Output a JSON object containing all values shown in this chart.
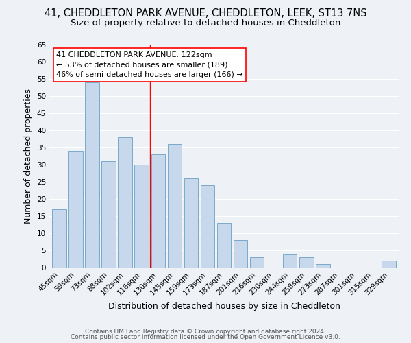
{
  "title": "41, CHEDDLETON PARK AVENUE, CHEDDLETON, LEEK, ST13 7NS",
  "subtitle": "Size of property relative to detached houses in Cheddleton",
  "xlabel": "Distribution of detached houses by size in Cheddleton",
  "ylabel": "Number of detached properties",
  "bar_labels": [
    "45sqm",
    "59sqm",
    "73sqm",
    "88sqm",
    "102sqm",
    "116sqm",
    "130sqm",
    "145sqm",
    "159sqm",
    "173sqm",
    "187sqm",
    "201sqm",
    "216sqm",
    "230sqm",
    "244sqm",
    "258sqm",
    "273sqm",
    "287sqm",
    "301sqm",
    "315sqm",
    "329sqm"
  ],
  "bar_values": [
    17,
    34,
    54,
    31,
    38,
    30,
    33,
    36,
    26,
    24,
    13,
    8,
    3,
    0,
    4,
    3,
    1,
    0,
    0,
    0,
    2
  ],
  "bar_color": "#c8d8ec",
  "bar_edge_color": "#7aaac8",
  "ylim": [
    0,
    65
  ],
  "yticks": [
    0,
    5,
    10,
    15,
    20,
    25,
    30,
    35,
    40,
    45,
    50,
    55,
    60,
    65
  ],
  "vline_x_index": 5.5,
  "annotation_line1": "41 CHEDDLETON PARK AVENUE: 122sqm",
  "annotation_line2": "← 53% of detached houses are smaller (189)",
  "annotation_line3": "46% of semi-detached houses are larger (166) →",
  "footer_line1": "Contains HM Land Registry data © Crown copyright and database right 2024.",
  "footer_line2": "Contains public sector information licensed under the Open Government Licence v3.0.",
  "background_color": "#eef2f7",
  "grid_color": "#ffffff",
  "title_fontsize": 10.5,
  "subtitle_fontsize": 9.5,
  "axis_label_fontsize": 9,
  "tick_fontsize": 7.5,
  "annotation_fontsize": 8,
  "footer_fontsize": 6.5
}
